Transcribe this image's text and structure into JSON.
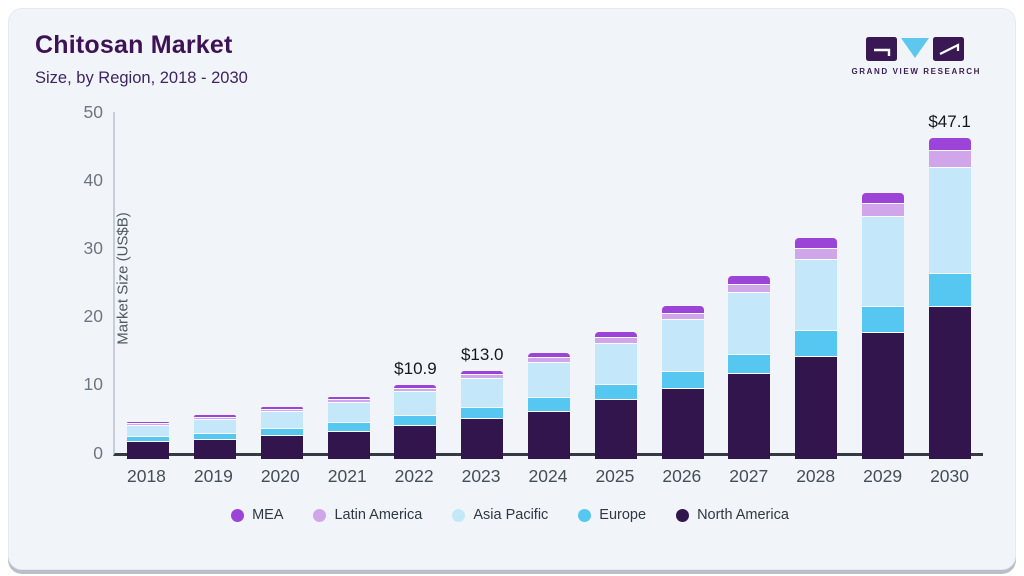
{
  "header": {
    "title": "Chitosan Market",
    "subtitle": "Size, by Region, 2018 - 2030"
  },
  "logo": {
    "text": "GRAND VIEW RESEARCH"
  },
  "chart_data": {
    "type": "bar",
    "stacked": true,
    "title": "Chitosan Market Size, by Region, 2018 - 2030",
    "xlabel": "",
    "ylabel": "Market Size (US$B)",
    "ylim": [
      0,
      50
    ],
    "yticks": [
      0,
      10,
      20,
      30,
      40,
      50
    ],
    "grid": false,
    "legend_position": "bottom",
    "categories": [
      "2018",
      "2019",
      "2020",
      "2021",
      "2022",
      "2023",
      "2024",
      "2025",
      "2026",
      "2027",
      "2028",
      "2029",
      "2030"
    ],
    "series": [
      {
        "name": "North America",
        "color": "#33154e",
        "values": [
          2.6,
          3.0,
          3.5,
          4.2,
          5.0,
          6.1,
          7.0,
          8.9,
          10.4,
          12.6,
          15.2,
          18.6,
          22.5
        ]
      },
      {
        "name": "Europe",
        "color": "#55c7f1",
        "values": [
          0.8,
          0.9,
          1.1,
          1.3,
          1.5,
          1.6,
          2.1,
          2.2,
          2.6,
          2.8,
          3.8,
          3.9,
          4.8
        ]
      },
      {
        "name": "Asia Pacific",
        "color": "#c4e8f9",
        "values": [
          1.6,
          2.0,
          2.4,
          2.9,
          3.5,
          4.2,
          5.2,
          6.0,
          7.6,
          9.1,
          10.4,
          13.2,
          15.5
        ]
      },
      {
        "name": "Latin America",
        "color": "#d0a5e9",
        "values": [
          0.3,
          0.3,
          0.4,
          0.4,
          0.45,
          0.55,
          0.7,
          0.75,
          0.9,
          1.2,
          1.6,
          1.9,
          2.6
        ]
      },
      {
        "name": "MEA",
        "color": "#9c44d8",
        "values": [
          0.2,
          0.25,
          0.3,
          0.3,
          0.45,
          0.55,
          0.6,
          0.75,
          0.9,
          1.2,
          1.5,
          1.5,
          1.7
        ]
      }
    ],
    "total_labels": {
      "2022": "$10.9",
      "2023": "$13.0",
      "2030": "$47.1"
    },
    "legend_items": [
      {
        "label": "MEA",
        "color": "#9c44d8"
      },
      {
        "label": "Latin America",
        "color": "#d0a5e9"
      },
      {
        "label": "Asia Pacific",
        "color": "#c4e8f9"
      },
      {
        "label": "Europe",
        "color": "#55c7f1"
      },
      {
        "label": "North America",
        "color": "#33154e"
      }
    ]
  }
}
